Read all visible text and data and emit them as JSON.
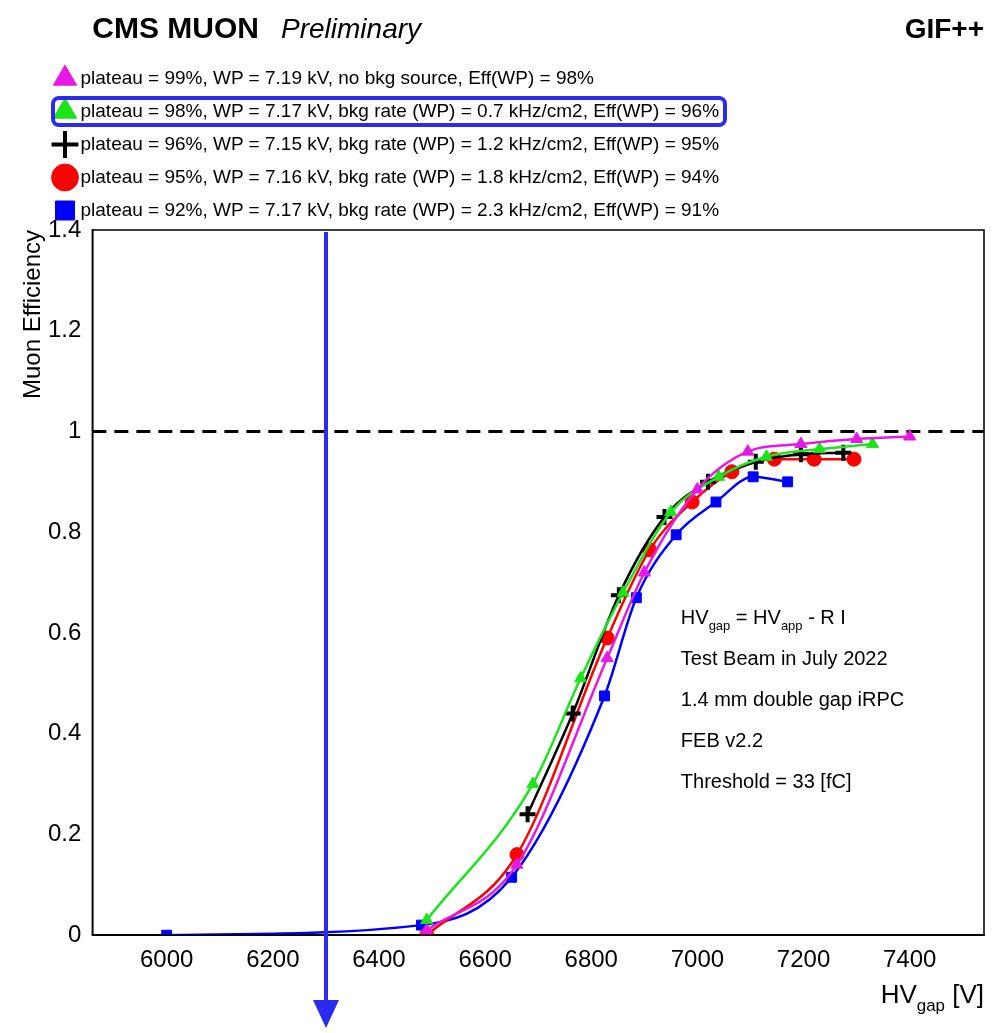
{
  "chart_data": {
    "type": "line",
    "title": "CMS MUON",
    "subtitle": "Preliminary",
    "xlabel": "HV$_{gap}$ [V]",
    "ylabel": "Muon Efficiency",
    "xlim": [
      5860,
      7540
    ],
    "xticks": [
      6000,
      6200,
      6400,
      6600,
      6800,
      7000,
      7200,
      7400
    ],
    "ylim": [
      0,
      1.4
    ],
    "yticks": [
      0,
      0.2,
      0.4,
      0.6,
      0.8,
      1,
      1.2,
      1.4
    ],
    "grid": false,
    "legend": "top",
    "line_style": "solid",
    "ref_lines": [
      {
        "axis": "y",
        "value": 1,
        "label": null,
        "color": "#000000",
        "line_style": "dashed"
      }
    ],
    "annotations": [
      "GIF++",
      "HV$_{gap}$ = HV$_{app}$ - R I",
      "Test Beam in July 2022",
      "1.4 mm double gap iRPC",
      "FEB v2.2",
      "Threshold = 33 [fC]"
    ],
    "series": [
      {
        "name": "plateau = 99%, WP = 7.19 kV, no bkg source, Eff(WP) = 98%",
        "color": "#e619e6",
        "marker": "triangle",
        "x": [
          6490,
          6660,
          6830,
          6900,
          7000,
          7095,
          7195,
          7300,
          7400
        ],
        "values": [
          0.01,
          0.14,
          0.55,
          0.72,
          0.885,
          0.96,
          0.975,
          0.985,
          0.99
        ]
      },
      {
        "name": "plateau = 98%, WP = 7.17 kV, bkg rate (WP) = 0.7 kHz/cm2, Eff(WP) = 96%",
        "color": "#19e619",
        "marker": "triangle",
        "x": [
          6490,
          6690,
          6780,
          6860,
          6950,
          7040,
          7130,
          7230,
          7330
        ],
        "values": [
          0.03,
          0.3,
          0.51,
          0.68,
          0.84,
          0.91,
          0.95,
          0.965,
          0.975
        ]
      },
      {
        "name": "plateau = 96%, WP = 7.15 kV, bkg rate (WP) = 1.2 kHz/cm2, Eff(WP) = 95%",
        "color": "#000000",
        "marker": "cross",
        "x": [
          6680,
          6765,
          6852,
          6938,
          7020,
          7110,
          7195,
          7275
        ],
        "values": [
          0.24,
          0.44,
          0.675,
          0.83,
          0.9,
          0.94,
          0.955,
          0.958
        ]
      },
      {
        "name": "plateau = 95%, WP = 7.16 kV, bkg rate (WP) = 1.8 kHz/cm2, Eff(WP) = 94%",
        "color": "#ff0000",
        "marker": "circle",
        "x": [
          6490,
          6660,
          6830,
          6910,
          6990,
          7065,
          7145,
          7220,
          7295
        ],
        "values": [
          0,
          0.16,
          0.59,
          0.765,
          0.86,
          0.92,
          0.945,
          0.945,
          0.945
        ]
      },
      {
        "name": "plateau = 92%, WP = 7.17 kV, bkg rate (WP) = 2.3 kHz/cm2, Eff(WP) = 91%",
        "color": "#0000ff",
        "marker": "square",
        "x": [
          6000,
          6480,
          6650,
          6825,
          6885,
          6960,
          7035,
          7105,
          7170
        ],
        "values": [
          0,
          0.02,
          0.115,
          0.475,
          0.67,
          0.795,
          0.86,
          0.91,
          0.9
        ]
      }
    ]
  }
}
